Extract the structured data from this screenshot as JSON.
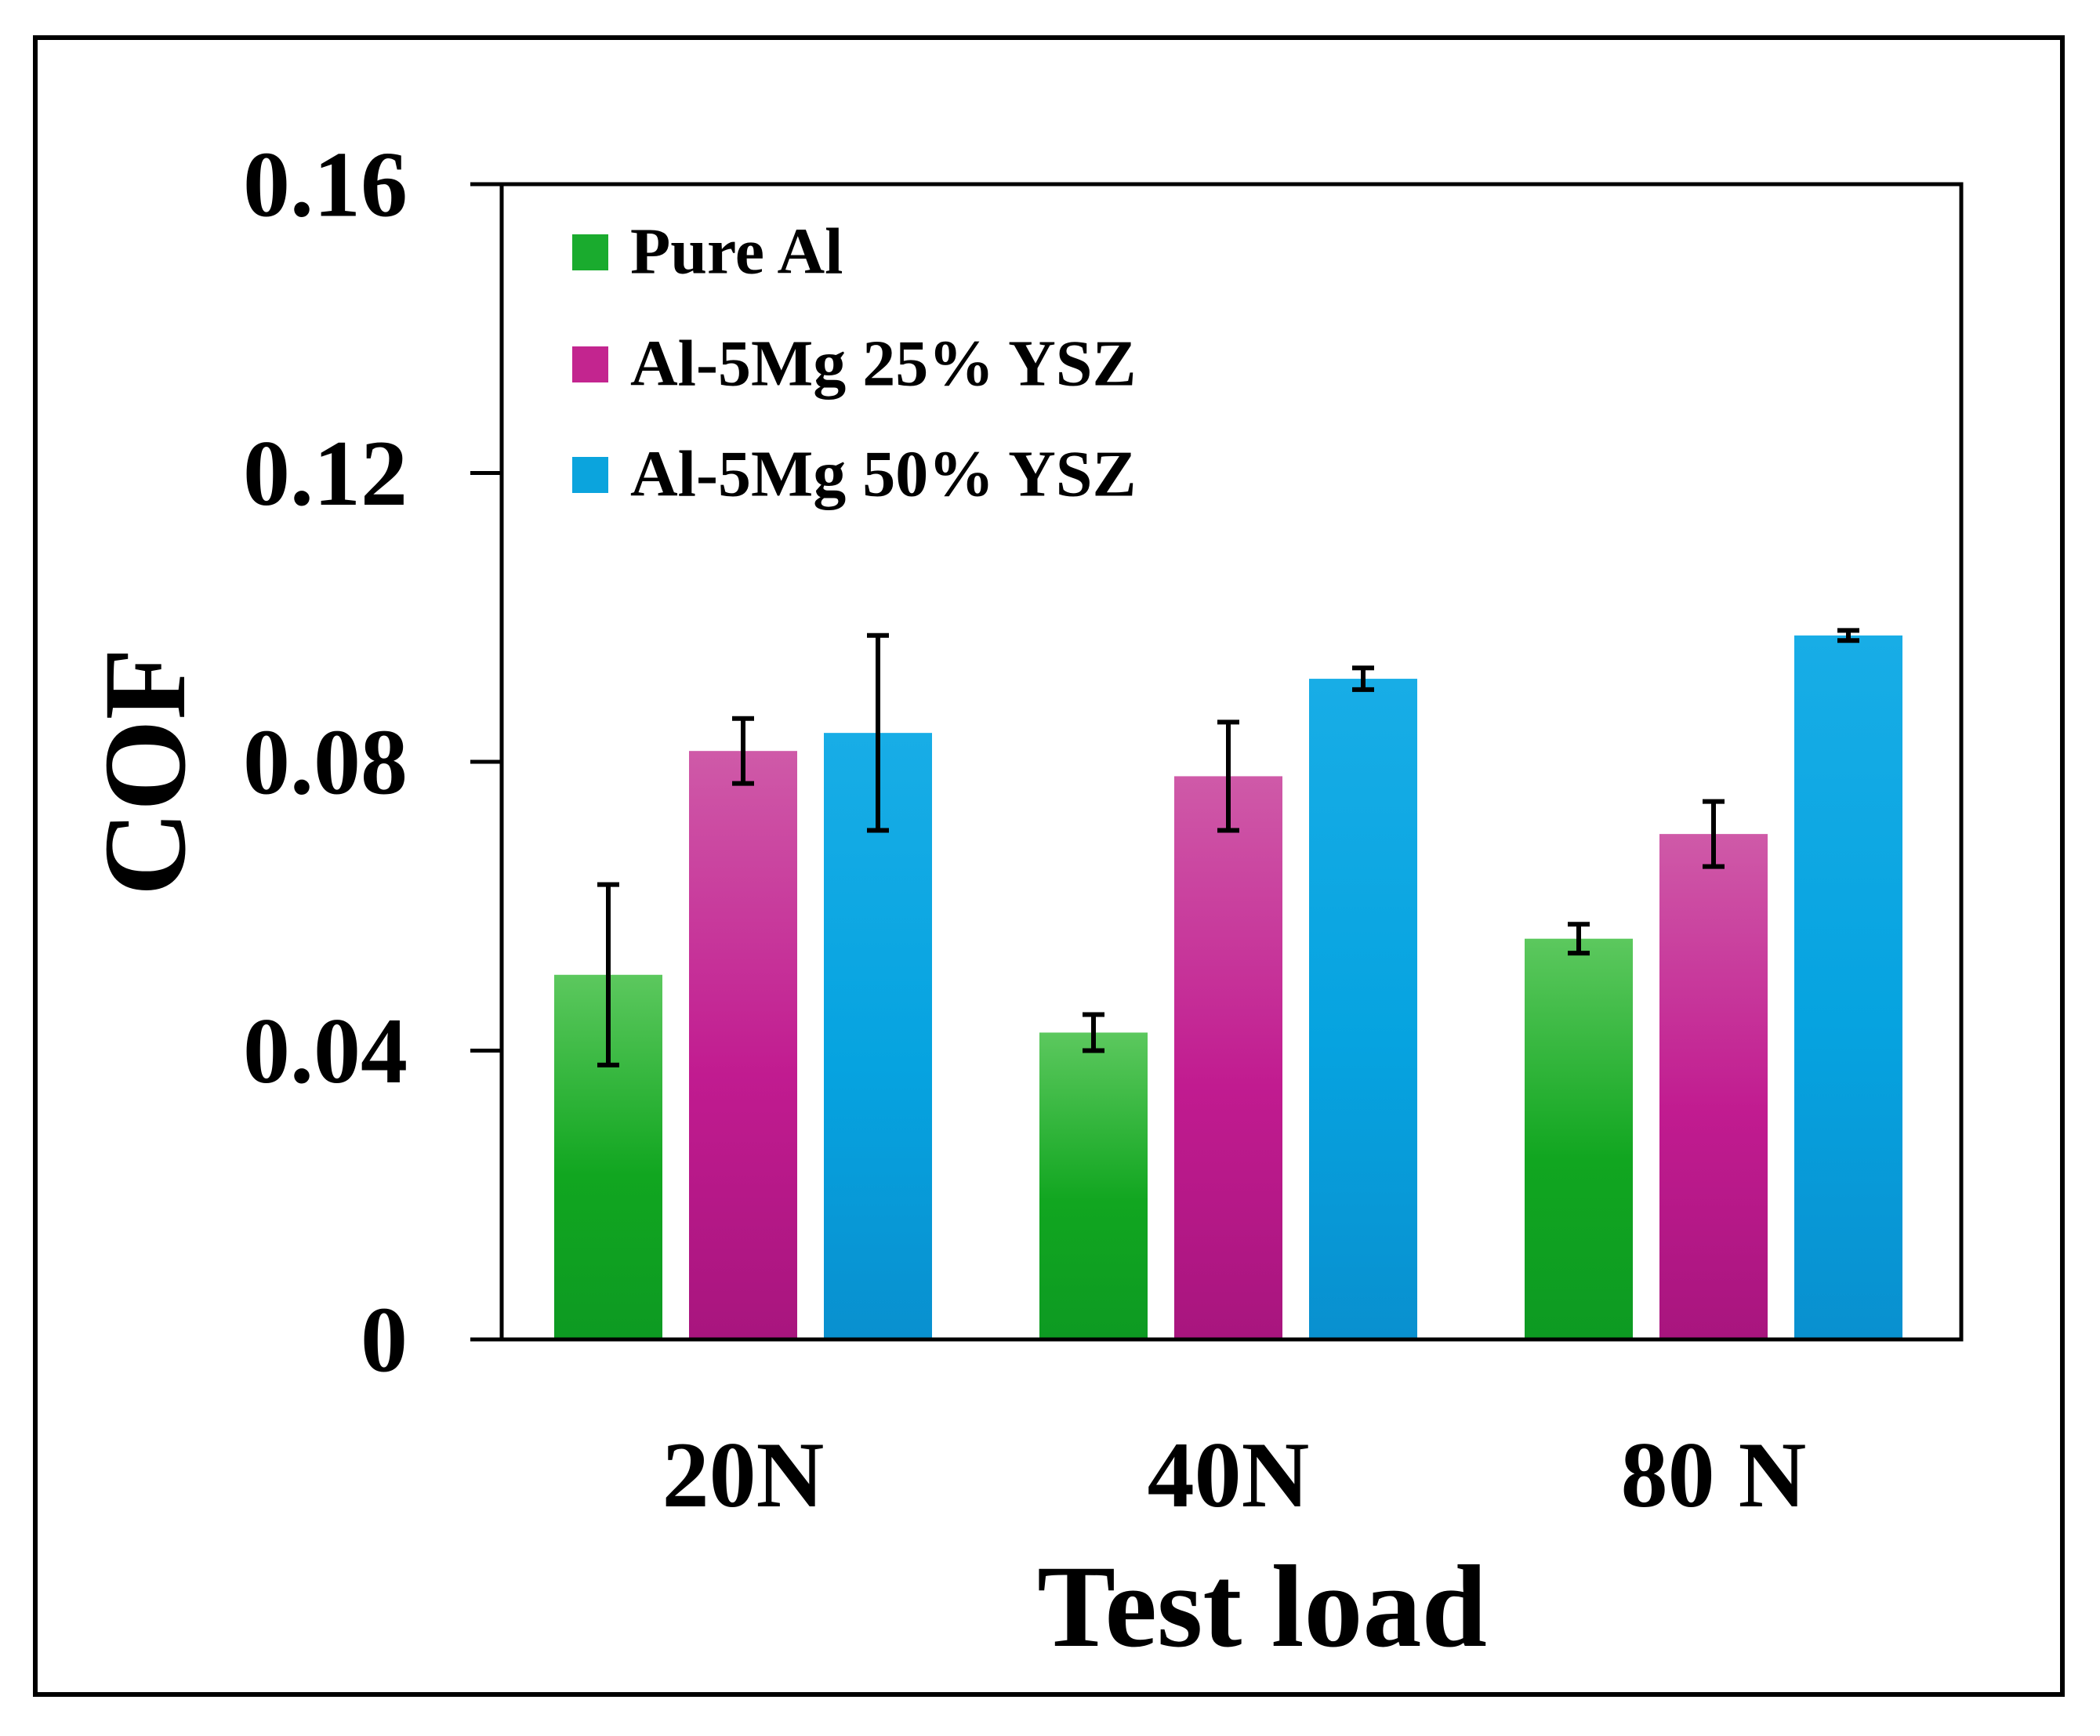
{
  "chart_data": {
    "type": "bar",
    "title": "",
    "xlabel": "Test load",
    "ylabel": "COF",
    "categories": [
      "20N",
      "40N",
      "80 N"
    ],
    "ylim": [
      0,
      0.16
    ],
    "yticks": [
      0,
      0.04,
      0.08,
      0.12,
      0.16
    ],
    "ytick_labels": [
      "0",
      "0.04",
      "0.08",
      "0.12",
      "0.16"
    ],
    "grid": false,
    "legend_position": "top-left",
    "error_bars": true,
    "series": [
      {
        "name": "Pure Al",
        "color": "#1aab2e",
        "values": [
          0.0505,
          0.0425,
          0.0555
        ],
        "errors": [
          0.0125,
          0.0025,
          0.002
        ]
      },
      {
        "name": "Al-5Mg 25% YSZ",
        "color": "#c3258f",
        "values": [
          0.0815,
          0.078,
          0.07
        ],
        "errors": [
          0.0045,
          0.0075,
          0.0045
        ]
      },
      {
        "name": "Al-5Mg 50% YSZ",
        "color": "#0ba4dd",
        "values": [
          0.084,
          0.0915,
          0.0975
        ],
        "errors": [
          0.0135,
          0.0015,
          0.0007
        ]
      }
    ]
  }
}
